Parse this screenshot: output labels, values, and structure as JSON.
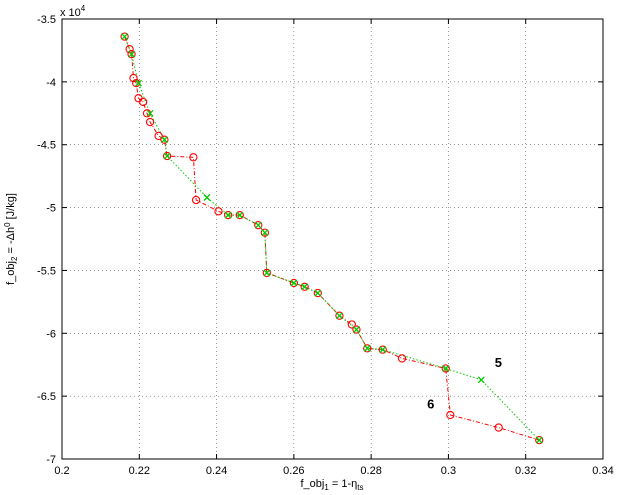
{
  "chart_data": {
    "type": "scatter",
    "xlabel_parts": [
      "f_obj",
      "1",
      " = 1-η",
      "ts"
    ],
    "ylabel_parts": [
      "f_obj",
      "2",
      " = -Δh",
      "0",
      " [J/kg]"
    ],
    "xlim": [
      0.2,
      0.34
    ],
    "ylim": [
      -70000,
      -35000
    ],
    "x_ticks": [
      0.2,
      0.22,
      0.24,
      0.26,
      0.28,
      0.3,
      0.32,
      0.34
    ],
    "x_tick_labels": [
      "0.2",
      "0.22",
      "0.24",
      "0.26",
      "0.28",
      "0.3",
      "0.32",
      "0.34"
    ],
    "y_ticks": [
      -35000,
      -40000,
      -45000,
      -50000,
      -55000,
      -60000,
      -65000,
      -70000
    ],
    "y_tick_labels": [
      "-3.5",
      "-4",
      "-4.5",
      "-5",
      "-5.5",
      "-6",
      "-6.5",
      "-7"
    ],
    "y_multiplier_base": "x 10",
    "y_multiplier_exp": "4",
    "grid": true,
    "colors": {
      "red": "#ff0000",
      "green": "#00cc00"
    },
    "series": [
      {
        "marker": "o",
        "line": "dash-dot",
        "color": "#ff0000",
        "x": [
          0.2162,
          0.2175,
          0.218,
          0.2185,
          0.2192,
          0.2198,
          0.221,
          0.222,
          0.2228,
          0.225,
          0.2265,
          0.2272,
          0.234,
          0.2347,
          0.2405,
          0.243,
          0.246,
          0.2508,
          0.2525,
          0.253,
          0.26,
          0.2628,
          0.2662,
          0.2718,
          0.275,
          0.2762,
          0.279,
          0.283,
          0.288,
          0.2993,
          0.3005,
          0.313,
          0.3235
        ],
        "y": [
          -36400,
          -37400,
          -37800,
          -39700,
          -40100,
          -41300,
          -41600,
          -42500,
          -43200,
          -44300,
          -44600,
          -45900,
          -46000,
          -49400,
          -50300,
          -50600,
          -50600,
          -51400,
          -52000,
          -55200,
          -56000,
          -56300,
          -56800,
          -58600,
          -59300,
          -59700,
          -61200,
          -61300,
          -62000,
          -62800,
          -66500,
          -67500,
          -68500
        ]
      },
      {
        "marker": "x",
        "line": "dotted",
        "color": "#00cc00",
        "x": [
          0.2162,
          0.218,
          0.2198,
          0.2228,
          0.2265,
          0.2272,
          0.2375,
          0.243,
          0.246,
          0.2508,
          0.2525,
          0.253,
          0.26,
          0.2628,
          0.2662,
          0.2718,
          0.2762,
          0.279,
          0.283,
          0.2993,
          0.3085,
          0.3235
        ],
        "y": [
          -36400,
          -37800,
          -40100,
          -42500,
          -44600,
          -45900,
          -49200,
          -50600,
          -50600,
          -51400,
          -52000,
          -55200,
          -56000,
          -56300,
          -56800,
          -58600,
          -59700,
          -61200,
          -61300,
          -62800,
          -63700,
          -68500
        ]
      }
    ],
    "annotations": [
      {
        "text": "5",
        "x": 0.312,
        "y": -62700
      },
      {
        "text": "6",
        "x": 0.2945,
        "y": -66000
      }
    ]
  }
}
